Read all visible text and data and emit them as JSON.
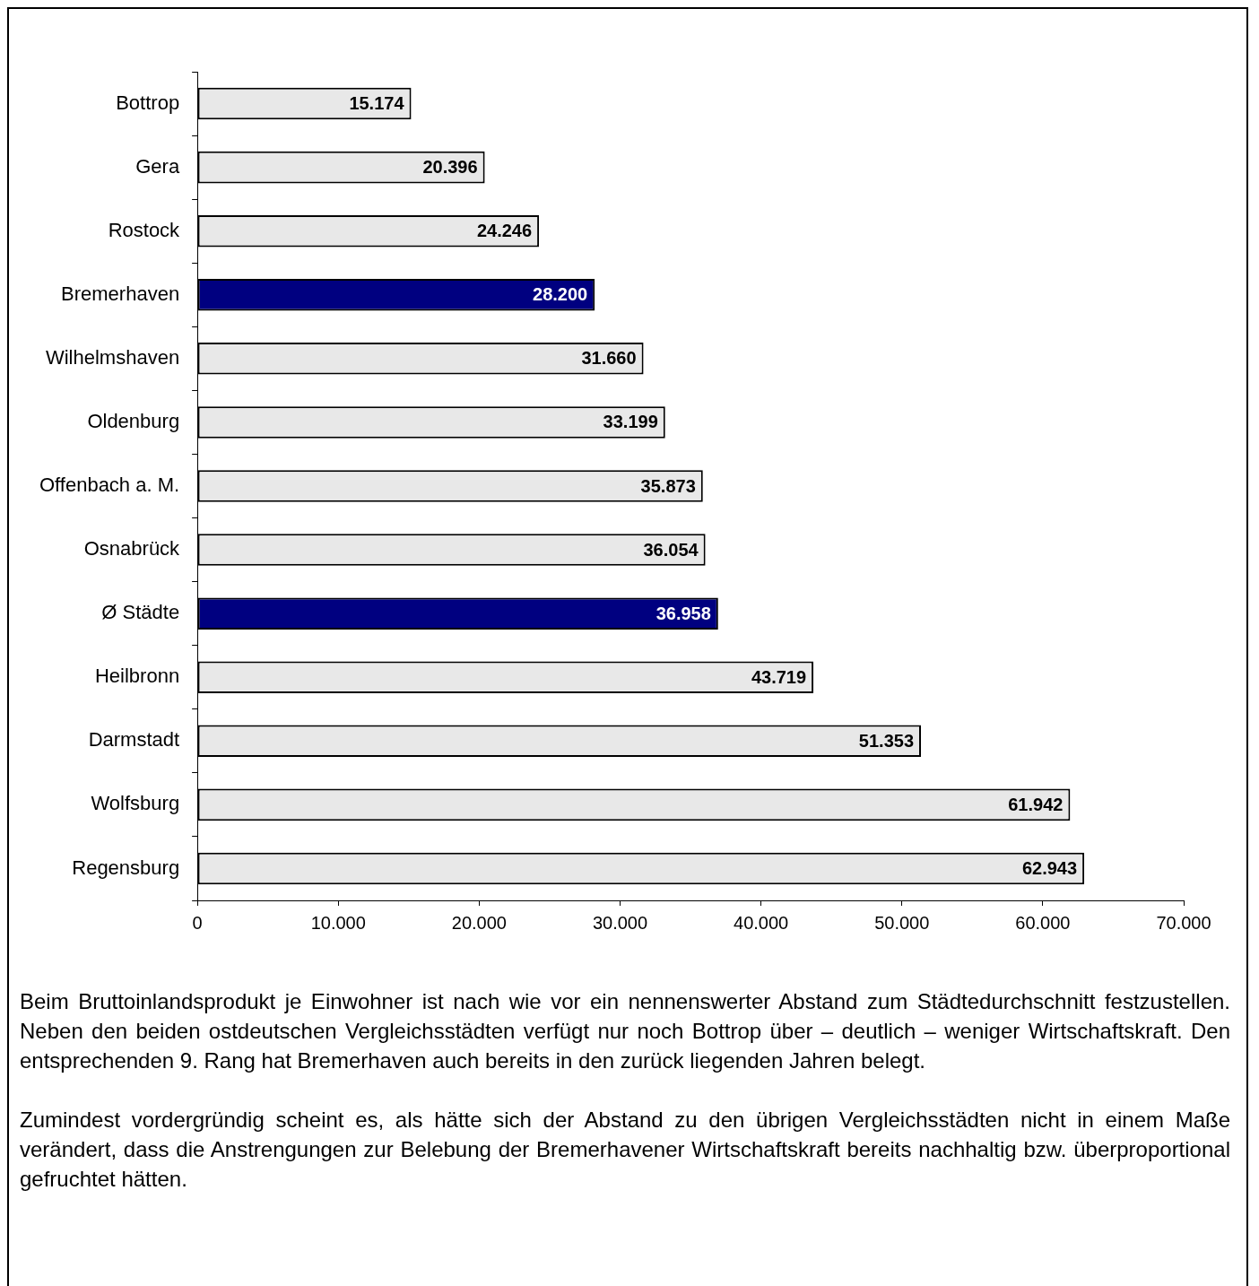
{
  "chart_data": {
    "type": "bar",
    "orientation": "horizontal",
    "categories": [
      "Bottrop",
      "Gera",
      "Rostock",
      "Bremerhaven",
      "Wilhelmshaven",
      "Oldenburg",
      "Offenbach a. M.",
      "Osnabrück",
      "Ø Städte",
      "Heilbronn",
      "Darmstadt",
      "Wolfsburg",
      "Regensburg"
    ],
    "values": [
      15174,
      20396,
      24246,
      28200,
      31660,
      33199,
      35873,
      36054,
      36958,
      43719,
      51353,
      61942,
      62943
    ],
    "value_labels": [
      "15.174",
      "20.396",
      "24.246",
      "28.200",
      "31.660",
      "33.199",
      "35.873",
      "36.054",
      "36.958",
      "43.719",
      "51.353",
      "61.942",
      "62.943"
    ],
    "colors": [
      "#e8e8e8",
      "#e8e8e8",
      "#e8e8e8",
      "#000080",
      "#e8e8e8",
      "#e8e8e8",
      "#e8e8e8",
      "#e8e8e8",
      "#000080",
      "#e8e8e8",
      "#e8e8e8",
      "#e8e8e8",
      "#e8e8e8"
    ],
    "xlim": [
      0,
      70000
    ],
    "xticks": [
      0,
      {
        "value": 10000,
        "label": "10.000"
      },
      {
        "value": 20000,
        "label": "20.000"
      },
      {
        "value": 30000,
        "label": "30.000"
      },
      {
        "value": 40000,
        "label": "40.000"
      },
      {
        "value": 50000,
        "label": "50.000"
      },
      {
        "value": 60000,
        "label": "60.000"
      },
      {
        "value": 70000,
        "label": "70.000"
      }
    ],
    "grid": false,
    "legend": false,
    "annotations": [
      "Beim Bruttoinlandsprodukt je Einwohner ist nach wie vor ein nennenswerter Abstand zum Städtedurchschnitt festzustellen. Neben den beiden ostdeutschen Vergleichsstädten verfügt nur noch Bottrop über – deutlich – weniger Wirtschaftskraft. Den entsprechenden 9. Rang hat Bremerhaven auch bereits in den zurück liegenden Jahren belegt.",
      "Zumindest vordergründig scheint es, als hätte sich der Abstand zu den übrigen Vergleichsstädten nicht in einem Maße verändert, dass die Anstrengungen zur Belebung der Bremerhavener Wirtschaftskraft bereits nachhaltig bzw. überproportional gefruchtet hätten."
    ]
  }
}
